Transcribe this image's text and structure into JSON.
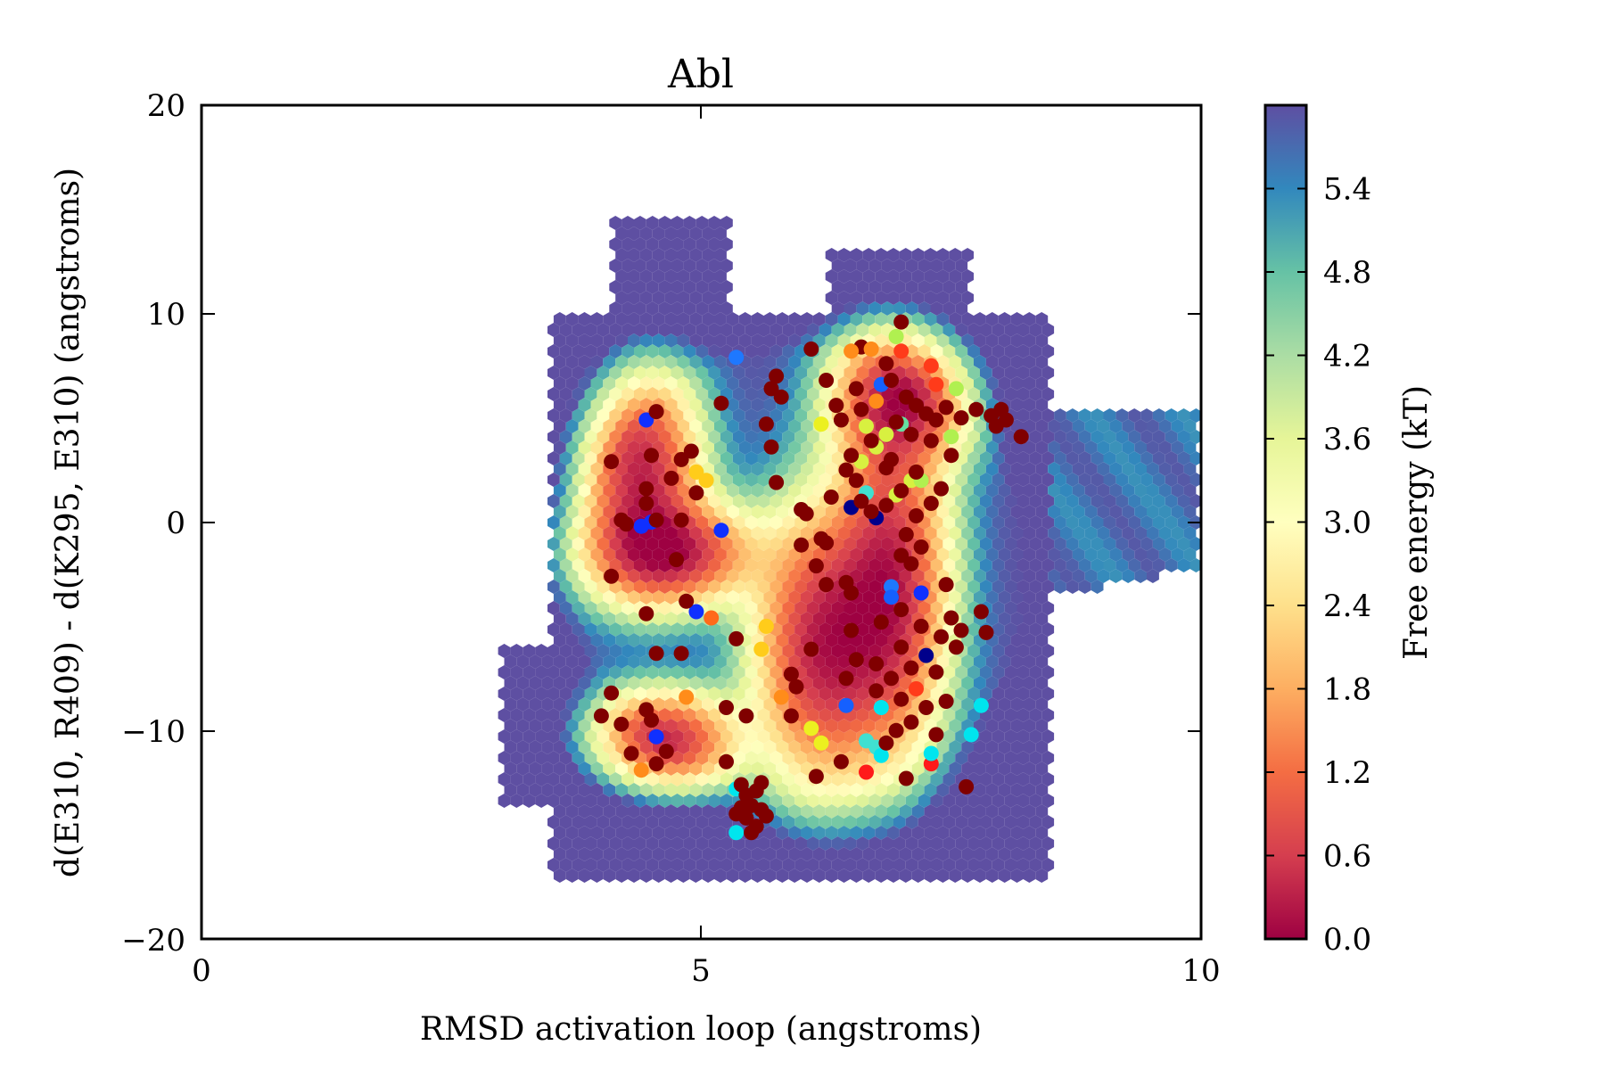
{
  "chart_data": {
    "type": "scatter",
    "title": "Abl",
    "xlabel": "RMSD activation loop (angstroms)",
    "ylabel": "d(E310, R409) - d(K295, E310) (angstroms)",
    "xlim": [
      0,
      10
    ],
    "ylim": [
      -20,
      20
    ],
    "xticks": [
      "0",
      "5",
      "10"
    ],
    "yticks": [
      "20",
      "10",
      "0",
      "−10",
      "−20"
    ],
    "colorbar": {
      "label": "Free energy (kT)",
      "range": [
        0,
        6.0
      ],
      "ticks": [
        "0.0",
        "0.6",
        "1.2",
        "1.8",
        "2.4",
        "3.0",
        "3.6",
        "4.2",
        "4.8",
        "5.4"
      ],
      "colormap": [
        "#9e0142",
        "#d53e4f",
        "#f46d43",
        "#fdae61",
        "#fee08b",
        "#ffffbf",
        "#e6f598",
        "#abdda4",
        "#66c2a5",
        "#3288bd",
        "#5e4fa2"
      ]
    },
    "background": {
      "kind": "hexbin free-energy landscape",
      "wells": [
        {
          "x": 4.4,
          "y": 2.5,
          "sx": 0.35,
          "sy": 3.0
        },
        {
          "x": 4.6,
          "y": -10.5,
          "sx": 0.45,
          "sy": 1.4
        },
        {
          "x": 4.7,
          "y": -1.5,
          "sx": 0.5,
          "sy": 1.5
        },
        {
          "x": 7.0,
          "y": 6.0,
          "sx": 0.4,
          "sy": 2.0
        },
        {
          "x": 6.9,
          "y": -3.0,
          "sx": 0.35,
          "sy": 5.0
        },
        {
          "x": 6.2,
          "y": -6.0,
          "sx": 0.4,
          "sy": 4.0
        }
      ]
    },
    "points": [
      {
        "x": 6.6,
        "y": 8.4,
        "c": "#800000"
      },
      {
        "x": 7.0,
        "y": 9.6,
        "c": "#800000"
      },
      {
        "x": 6.1,
        "y": 8.3,
        "c": "#800000"
      },
      {
        "x": 6.5,
        "y": 8.2,
        "c": "#ff8c1a"
      },
      {
        "x": 6.7,
        "y": 8.3,
        "c": "#ff8c1a"
      },
      {
        "x": 6.95,
        "y": 8.9,
        "c": "#b0f050"
      },
      {
        "x": 7.0,
        "y": 8.2,
        "c": "#ff3b1a"
      },
      {
        "x": 7.3,
        "y": 7.5,
        "c": "#ff3b1a"
      },
      {
        "x": 7.35,
        "y": 6.6,
        "c": "#ff3b1a"
      },
      {
        "x": 6.8,
        "y": 6.6,
        "c": "#1560ff"
      },
      {
        "x": 7.55,
        "y": 6.4,
        "c": "#b0f050"
      },
      {
        "x": 6.75,
        "y": 5.8,
        "c": "#ff8c1a"
      },
      {
        "x": 7.0,
        "y": 4.7,
        "c": "#66e0a0"
      },
      {
        "x": 6.65,
        "y": 4.6,
        "c": "#d8f040"
      },
      {
        "x": 6.85,
        "y": 4.2,
        "c": "#d8f040"
      },
      {
        "x": 6.75,
        "y": 3.6,
        "c": "#d8f040"
      },
      {
        "x": 7.5,
        "y": 4.1,
        "c": "#b0f050"
      },
      {
        "x": 6.6,
        "y": 2.9,
        "c": "#d8f040"
      },
      {
        "x": 7.1,
        "y": 2.0,
        "c": "#d8f040"
      },
      {
        "x": 7.2,
        "y": 2.0,
        "c": "#b0f050"
      },
      {
        "x": 6.65,
        "y": 1.4,
        "c": "#40e0d0"
      },
      {
        "x": 6.95,
        "y": 1.3,
        "c": "#d8f040"
      },
      {
        "x": 6.5,
        "y": 0.7,
        "c": "#00008b"
      },
      {
        "x": 6.75,
        "y": 0.2,
        "c": "#00008b"
      },
      {
        "x": 6.2,
        "y": 4.7,
        "c": "#ecf020"
      },
      {
        "x": 5.35,
        "y": 7.9,
        "c": "#1e78ff"
      },
      {
        "x": 4.45,
        "y": 4.9,
        "c": "#1030ff"
      },
      {
        "x": 4.4,
        "y": -0.2,
        "c": "#1030ff"
      },
      {
        "x": 4.5,
        "y": 0.0,
        "c": "#1030ff"
      },
      {
        "x": 5.2,
        "y": -0.4,
        "c": "#1030ff"
      },
      {
        "x": 4.95,
        "y": 2.4,
        "c": "#ffcc1a"
      },
      {
        "x": 5.05,
        "y": 2.0,
        "c": "#ffcc1a"
      },
      {
        "x": 4.95,
        "y": -4.3,
        "c": "#1030ff"
      },
      {
        "x": 5.1,
        "y": -4.6,
        "c": "#ff6a1a"
      },
      {
        "x": 5.65,
        "y": -5.0,
        "c": "#ffcc1a"
      },
      {
        "x": 5.6,
        "y": -6.1,
        "c": "#ffcc1a"
      },
      {
        "x": 4.85,
        "y": -8.4,
        "c": "#ff8c1a"
      },
      {
        "x": 4.55,
        "y": -10.3,
        "c": "#1030ff"
      },
      {
        "x": 4.4,
        "y": -11.9,
        "c": "#ff8c1a"
      },
      {
        "x": 5.8,
        "y": -8.4,
        "c": "#ff8c1a"
      },
      {
        "x": 6.1,
        "y": -9.9,
        "c": "#ecf020"
      },
      {
        "x": 6.2,
        "y": -10.6,
        "c": "#ecf020"
      },
      {
        "x": 5.35,
        "y": -12.8,
        "c": "#00e5ee"
      },
      {
        "x": 5.35,
        "y": -14.9,
        "c": "#00e5ee"
      },
      {
        "x": 6.65,
        "y": -10.5,
        "c": "#40e0d0"
      },
      {
        "x": 6.75,
        "y": -10.8,
        "c": "#40e0d0"
      },
      {
        "x": 6.8,
        "y": -11.2,
        "c": "#00e5ee"
      },
      {
        "x": 6.8,
        "y": -8.9,
        "c": "#00e5ee"
      },
      {
        "x": 6.65,
        "y": -12.0,
        "c": "#ff1a1a"
      },
      {
        "x": 7.3,
        "y": -11.6,
        "c": "#ff1a1a"
      },
      {
        "x": 7.3,
        "y": -11.1,
        "c": "#00e5ee"
      },
      {
        "x": 7.7,
        "y": -10.2,
        "c": "#00e5ee"
      },
      {
        "x": 7.8,
        "y": -8.8,
        "c": "#00e5ee"
      },
      {
        "x": 6.45,
        "y": -8.8,
        "c": "#1560ff"
      },
      {
        "x": 6.9,
        "y": -3.1,
        "c": "#1e78ff"
      },
      {
        "x": 6.9,
        "y": -3.6,
        "c": "#1560ff"
      },
      {
        "x": 7.2,
        "y": -3.4,
        "c": "#1030ff"
      },
      {
        "x": 7.25,
        "y": -6.4,
        "c": "#00008b"
      },
      {
        "x": 7.15,
        "y": -8.0,
        "c": "#ff3b1a"
      },
      {
        "x": 4.1,
        "y": 2.9,
        "c": "#800000"
      },
      {
        "x": 4.5,
        "y": 3.2,
        "c": "#800000"
      },
      {
        "x": 4.55,
        "y": 5.3,
        "c": "#800000"
      },
      {
        "x": 4.9,
        "y": 3.4,
        "c": "#800000"
      },
      {
        "x": 4.8,
        "y": 3.0,
        "c": "#800000"
      },
      {
        "x": 4.45,
        "y": 1.6,
        "c": "#800000"
      },
      {
        "x": 4.7,
        "y": 2.1,
        "c": "#800000"
      },
      {
        "x": 4.95,
        "y": 1.4,
        "c": "#800000"
      },
      {
        "x": 4.2,
        "y": 0.1,
        "c": "#800000"
      },
      {
        "x": 4.25,
        "y": -0.1,
        "c": "#800000"
      },
      {
        "x": 4.55,
        "y": 0.1,
        "c": "#800000"
      },
      {
        "x": 4.8,
        "y": 0.1,
        "c": "#800000"
      },
      {
        "x": 4.45,
        "y": 0.9,
        "c": "#800000"
      },
      {
        "x": 4.75,
        "y": -1.8,
        "c": "#800000"
      },
      {
        "x": 4.1,
        "y": -2.6,
        "c": "#800000"
      },
      {
        "x": 4.85,
        "y": -3.8,
        "c": "#800000"
      },
      {
        "x": 4.45,
        "y": -4.4,
        "c": "#800000"
      },
      {
        "x": 4.55,
        "y": -6.3,
        "c": "#800000"
      },
      {
        "x": 4.8,
        "y": -6.3,
        "c": "#800000"
      },
      {
        "x": 4.1,
        "y": -8.2,
        "c": "#800000"
      },
      {
        "x": 4.0,
        "y": -9.3,
        "c": "#800000"
      },
      {
        "x": 4.2,
        "y": -9.7,
        "c": "#800000"
      },
      {
        "x": 4.45,
        "y": -9.0,
        "c": "#800000"
      },
      {
        "x": 4.5,
        "y": -9.5,
        "c": "#800000"
      },
      {
        "x": 4.3,
        "y": -11.1,
        "c": "#800000"
      },
      {
        "x": 4.65,
        "y": -11.0,
        "c": "#800000"
      },
      {
        "x": 4.55,
        "y": -11.6,
        "c": "#800000"
      },
      {
        "x": 5.25,
        "y": -8.9,
        "c": "#800000"
      },
      {
        "x": 5.45,
        "y": -9.3,
        "c": "#800000"
      },
      {
        "x": 5.25,
        "y": -11.5,
        "c": "#800000"
      },
      {
        "x": 5.2,
        "y": 5.7,
        "c": "#800000"
      },
      {
        "x": 5.7,
        "y": 6.4,
        "c": "#800000"
      },
      {
        "x": 5.75,
        "y": 7.0,
        "c": "#800000"
      },
      {
        "x": 5.8,
        "y": 6.0,
        "c": "#800000"
      },
      {
        "x": 5.65,
        "y": 4.7,
        "c": "#800000"
      },
      {
        "x": 5.7,
        "y": 3.6,
        "c": "#800000"
      },
      {
        "x": 5.75,
        "y": 1.9,
        "c": "#800000"
      },
      {
        "x": 5.35,
        "y": -5.6,
        "c": "#800000"
      },
      {
        "x": 5.9,
        "y": -7.3,
        "c": "#800000"
      },
      {
        "x": 5.95,
        "y": -7.9,
        "c": "#800000"
      },
      {
        "x": 6.1,
        "y": -6.1,
        "c": "#800000"
      },
      {
        "x": 5.9,
        "y": -9.3,
        "c": "#800000"
      },
      {
        "x": 6.15,
        "y": -12.2,
        "c": "#800000"
      },
      {
        "x": 6.4,
        "y": -11.5,
        "c": "#800000"
      },
      {
        "x": 6.0,
        "y": -1.1,
        "c": "#800000"
      },
      {
        "x": 6.0,
        "y": 0.6,
        "c": "#800000"
      },
      {
        "x": 6.05,
        "y": 0.4,
        "c": "#800000"
      },
      {
        "x": 6.2,
        "y": -0.8,
        "c": "#800000"
      },
      {
        "x": 6.25,
        "y": -1.0,
        "c": "#800000"
      },
      {
        "x": 6.15,
        "y": -2.1,
        "c": "#800000"
      },
      {
        "x": 6.25,
        "y": -3.0,
        "c": "#800000"
      },
      {
        "x": 6.45,
        "y": -2.9,
        "c": "#800000"
      },
      {
        "x": 6.5,
        "y": -3.4,
        "c": "#800000"
      },
      {
        "x": 6.5,
        "y": -5.2,
        "c": "#800000"
      },
      {
        "x": 6.55,
        "y": -6.6,
        "c": "#800000"
      },
      {
        "x": 6.45,
        "y": -7.5,
        "c": "#800000"
      },
      {
        "x": 6.25,
        "y": 6.8,
        "c": "#800000"
      },
      {
        "x": 6.35,
        "y": 5.6,
        "c": "#800000"
      },
      {
        "x": 6.4,
        "y": 4.9,
        "c": "#800000"
      },
      {
        "x": 6.55,
        "y": 6.4,
        "c": "#800000"
      },
      {
        "x": 6.6,
        "y": 5.4,
        "c": "#800000"
      },
      {
        "x": 6.5,
        "y": 3.2,
        "c": "#800000"
      },
      {
        "x": 6.45,
        "y": 2.5,
        "c": "#800000"
      },
      {
        "x": 6.55,
        "y": 2.0,
        "c": "#800000"
      },
      {
        "x": 6.6,
        "y": 1.0,
        "c": "#800000"
      },
      {
        "x": 6.3,
        "y": 1.2,
        "c": "#800000"
      },
      {
        "x": 6.7,
        "y": 0.5,
        "c": "#800000"
      },
      {
        "x": 6.85,
        "y": 7.6,
        "c": "#800000"
      },
      {
        "x": 6.9,
        "y": 6.8,
        "c": "#800000"
      },
      {
        "x": 7.05,
        "y": 6.0,
        "c": "#800000"
      },
      {
        "x": 7.15,
        "y": 5.6,
        "c": "#800000"
      },
      {
        "x": 7.25,
        "y": 5.2,
        "c": "#800000"
      },
      {
        "x": 7.35,
        "y": 4.9,
        "c": "#800000"
      },
      {
        "x": 7.45,
        "y": 5.5,
        "c": "#800000"
      },
      {
        "x": 7.6,
        "y": 5.0,
        "c": "#800000"
      },
      {
        "x": 7.75,
        "y": 5.4,
        "c": "#800000"
      },
      {
        "x": 7.9,
        "y": 5.1,
        "c": "#800000"
      },
      {
        "x": 8.0,
        "y": 5.4,
        "c": "#800000"
      },
      {
        "x": 8.05,
        "y": 4.9,
        "c": "#800000"
      },
      {
        "x": 8.2,
        "y": 4.1,
        "c": "#800000"
      },
      {
        "x": 7.95,
        "y": 4.6,
        "c": "#800000"
      },
      {
        "x": 7.1,
        "y": 4.2,
        "c": "#800000"
      },
      {
        "x": 7.3,
        "y": 3.9,
        "c": "#800000"
      },
      {
        "x": 7.5,
        "y": 3.2,
        "c": "#800000"
      },
      {
        "x": 6.9,
        "y": 3.0,
        "c": "#800000"
      },
      {
        "x": 7.15,
        "y": 2.4,
        "c": "#800000"
      },
      {
        "x": 7.4,
        "y": 1.6,
        "c": "#800000"
      },
      {
        "x": 7.3,
        "y": 0.9,
        "c": "#800000"
      },
      {
        "x": 7.05,
        "y": -0.6,
        "c": "#800000"
      },
      {
        "x": 7.0,
        "y": -1.6,
        "c": "#800000"
      },
      {
        "x": 7.1,
        "y": -2.0,
        "c": "#800000"
      },
      {
        "x": 7.2,
        "y": -1.2,
        "c": "#800000"
      },
      {
        "x": 7.45,
        "y": -3.0,
        "c": "#800000"
      },
      {
        "x": 7.5,
        "y": -4.6,
        "c": "#800000"
      },
      {
        "x": 7.4,
        "y": -5.5,
        "c": "#800000"
      },
      {
        "x": 7.6,
        "y": -5.2,
        "c": "#800000"
      },
      {
        "x": 7.8,
        "y": -4.3,
        "c": "#800000"
      },
      {
        "x": 7.85,
        "y": -5.3,
        "c": "#800000"
      },
      {
        "x": 7.0,
        "y": -4.2,
        "c": "#800000"
      },
      {
        "x": 6.8,
        "y": -4.8,
        "c": "#800000"
      },
      {
        "x": 7.2,
        "y": -5.0,
        "c": "#800000"
      },
      {
        "x": 7.0,
        "y": -6.0,
        "c": "#800000"
      },
      {
        "x": 6.75,
        "y": -6.8,
        "c": "#800000"
      },
      {
        "x": 6.9,
        "y": -7.5,
        "c": "#800000"
      },
      {
        "x": 6.75,
        "y": -8.1,
        "c": "#800000"
      },
      {
        "x": 7.1,
        "y": -7.0,
        "c": "#800000"
      },
      {
        "x": 7.35,
        "y": -7.2,
        "c": "#800000"
      },
      {
        "x": 7.0,
        "y": -8.5,
        "c": "#800000"
      },
      {
        "x": 7.25,
        "y": -8.9,
        "c": "#800000"
      },
      {
        "x": 7.45,
        "y": -8.6,
        "c": "#800000"
      },
      {
        "x": 7.1,
        "y": -9.6,
        "c": "#800000"
      },
      {
        "x": 6.95,
        "y": -10.0,
        "c": "#800000"
      },
      {
        "x": 6.85,
        "y": -10.6,
        "c": "#800000"
      },
      {
        "x": 7.05,
        "y": -12.3,
        "c": "#800000"
      },
      {
        "x": 7.65,
        "y": -12.7,
        "c": "#800000"
      },
      {
        "x": 7.35,
        "y": -10.2,
        "c": "#800000"
      },
      {
        "x": 7.55,
        "y": -6.0,
        "c": "#800000"
      },
      {
        "x": 6.95,
        "y": 4.8,
        "c": "#800000"
      },
      {
        "x": 6.7,
        "y": 3.9,
        "c": "#800000"
      },
      {
        "x": 6.85,
        "y": 2.6,
        "c": "#800000"
      },
      {
        "x": 7.0,
        "y": 1.5,
        "c": "#800000"
      },
      {
        "x": 6.85,
        "y": 0.8,
        "c": "#800000"
      },
      {
        "x": 7.15,
        "y": 0.3,
        "c": "#800000"
      },
      {
        "x": 5.4,
        "y": -12.6,
        "c": "#800000"
      },
      {
        "x": 5.45,
        "y": -13.1,
        "c": "#800000"
      },
      {
        "x": 5.5,
        "y": -13.6,
        "c": "#800000"
      },
      {
        "x": 5.55,
        "y": -12.9,
        "c": "#800000"
      },
      {
        "x": 5.6,
        "y": -13.8,
        "c": "#800000"
      },
      {
        "x": 5.45,
        "y": -14.2,
        "c": "#800000"
      },
      {
        "x": 5.55,
        "y": -14.6,
        "c": "#800000"
      },
      {
        "x": 5.4,
        "y": -13.7,
        "c": "#800000"
      },
      {
        "x": 5.6,
        "y": -12.5,
        "c": "#800000"
      },
      {
        "x": 5.35,
        "y": -14.0,
        "c": "#800000"
      },
      {
        "x": 5.5,
        "y": -14.9,
        "c": "#800000"
      },
      {
        "x": 5.65,
        "y": -14.1,
        "c": "#800000"
      }
    ]
  }
}
